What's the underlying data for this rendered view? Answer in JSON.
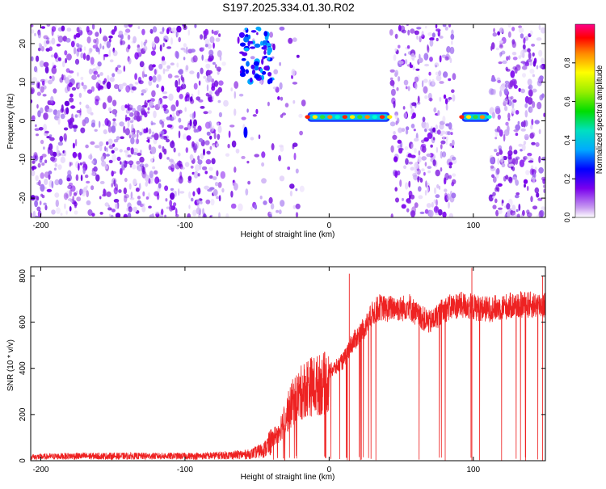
{
  "title": "S197.2025.334.01.30.R02",
  "spectrogram": {
    "xlabel": "Height of straight line (km)",
    "ylabel": "Frequency (Hz)",
    "xlim": [
      -207,
      150
    ],
    "ylim": [
      -25,
      25
    ],
    "xticks": [
      -200,
      -100,
      0,
      100
    ],
    "yticks": [
      -20,
      -10,
      0,
      10,
      20
    ],
    "colorbar": {
      "label": "Normalized spectral amplitude",
      "range": [
        0.0,
        1.0
      ],
      "ticks": [
        0.0,
        0.2,
        0.4,
        0.6,
        0.8
      ]
    },
    "gaps_km": [
      [
        -17,
        43
      ],
      [
        87,
        112
      ]
    ],
    "sparse_region_km": [
      -75,
      -15
    ],
    "line_segments": [
      {
        "x_start": -15,
        "x_end": 42,
        "freq_hz": 1.0,
        "peak_amplitude": 0.9
      },
      {
        "x_start": 92,
        "x_end": 111,
        "freq_hz": 1.0,
        "peak_amplitude": 0.85
      }
    ],
    "blob_cluster": {
      "x_center": -50,
      "freq_center_hz": 17,
      "peak_amplitude": 0.35
    }
  },
  "chart_data": {
    "type": "line",
    "title": "S197.2025.334.01.30.R02",
    "xlabel": "Height of straight line (km)",
    "ylabel": "SNR (10 * v/v)",
    "xlim": [
      -207,
      150
    ],
    "ylim": [
      0,
      840
    ],
    "xticks": [
      -200,
      -100,
      0,
      100
    ],
    "yticks": [
      0,
      200,
      400,
      600,
      800
    ],
    "series": [
      {
        "name": "SNR",
        "color": "#ee2222",
        "x": [
          -207,
          -180,
          -150,
          -120,
          -90,
          -70,
          -55,
          -45,
          -35,
          -25,
          -15,
          -10,
          -5,
          0,
          5,
          10,
          15,
          20,
          25,
          30,
          35,
          40,
          45,
          50,
          55,
          60,
          70,
          80,
          90,
          100,
          110,
          120,
          130,
          140,
          150
        ],
        "values": [
          20,
          25,
          25,
          25,
          25,
          30,
          35,
          60,
          150,
          300,
          380,
          380,
          390,
          400,
          420,
          450,
          520,
          560,
          600,
          660,
          690,
          680,
          690,
          680,
          700,
          660,
          620,
          680,
          700,
          690,
          680,
          690,
          700,
          700,
          700
        ],
        "peak_points": [
          [
            14,
            810
          ],
          [
            99,
            835
          ],
          [
            148,
            800
          ]
        ]
      }
    ]
  }
}
